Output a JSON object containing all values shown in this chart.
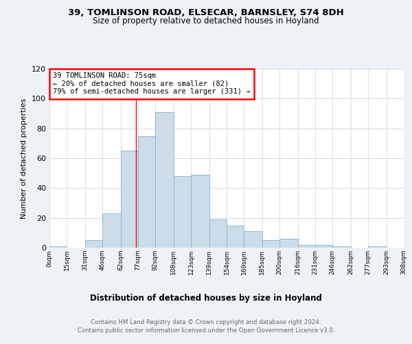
{
  "title1": "39, TOMLINSON ROAD, ELSECAR, BARNSLEY, S74 8DH",
  "title2": "Size of property relative to detached houses in Hoyland",
  "xlabel": "Distribution of detached houses by size in Hoyland",
  "ylabel": "Number of detached properties",
  "footer1": "Contains HM Land Registry data © Crown copyright and database right 2024.",
  "footer2": "Contains public sector information licensed under the Open Government Licence v3.0.",
  "annotation_line1": "39 TOMLINSON ROAD: 75sqm",
  "annotation_line2": "← 20% of detached houses are smaller (82)",
  "annotation_line3": "79% of semi-detached houses are larger (331) →",
  "bar_color": "#ccdce8",
  "bar_edge_color": "#8ab0cc",
  "red_line_x": 75,
  "categories": [
    "0sqm",
    "15sqm",
    "31sqm",
    "46sqm",
    "62sqm",
    "77sqm",
    "92sqm",
    "108sqm",
    "123sqm",
    "139sqm",
    "154sqm",
    "169sqm",
    "185sqm",
    "200sqm",
    "216sqm",
    "231sqm",
    "246sqm",
    "262sqm",
    "277sqm",
    "293sqm",
    "308sqm"
  ],
  "bin_edges": [
    0,
    15,
    31,
    46,
    62,
    77,
    92,
    108,
    123,
    139,
    154,
    169,
    185,
    200,
    216,
    231,
    246,
    262,
    277,
    293,
    308
  ],
  "values": [
    1,
    0,
    5,
    23,
    65,
    75,
    91,
    48,
    49,
    19,
    15,
    11,
    5,
    6,
    2,
    2,
    1,
    0,
    1,
    0,
    1
  ],
  "ylim": [
    0,
    120
  ],
  "yticks": [
    0,
    20,
    40,
    60,
    80,
    100,
    120
  ],
  "bg_color": "#eef2f6",
  "plot_bg_color": "#ffffff",
  "grid_color": "#d0d0d0"
}
